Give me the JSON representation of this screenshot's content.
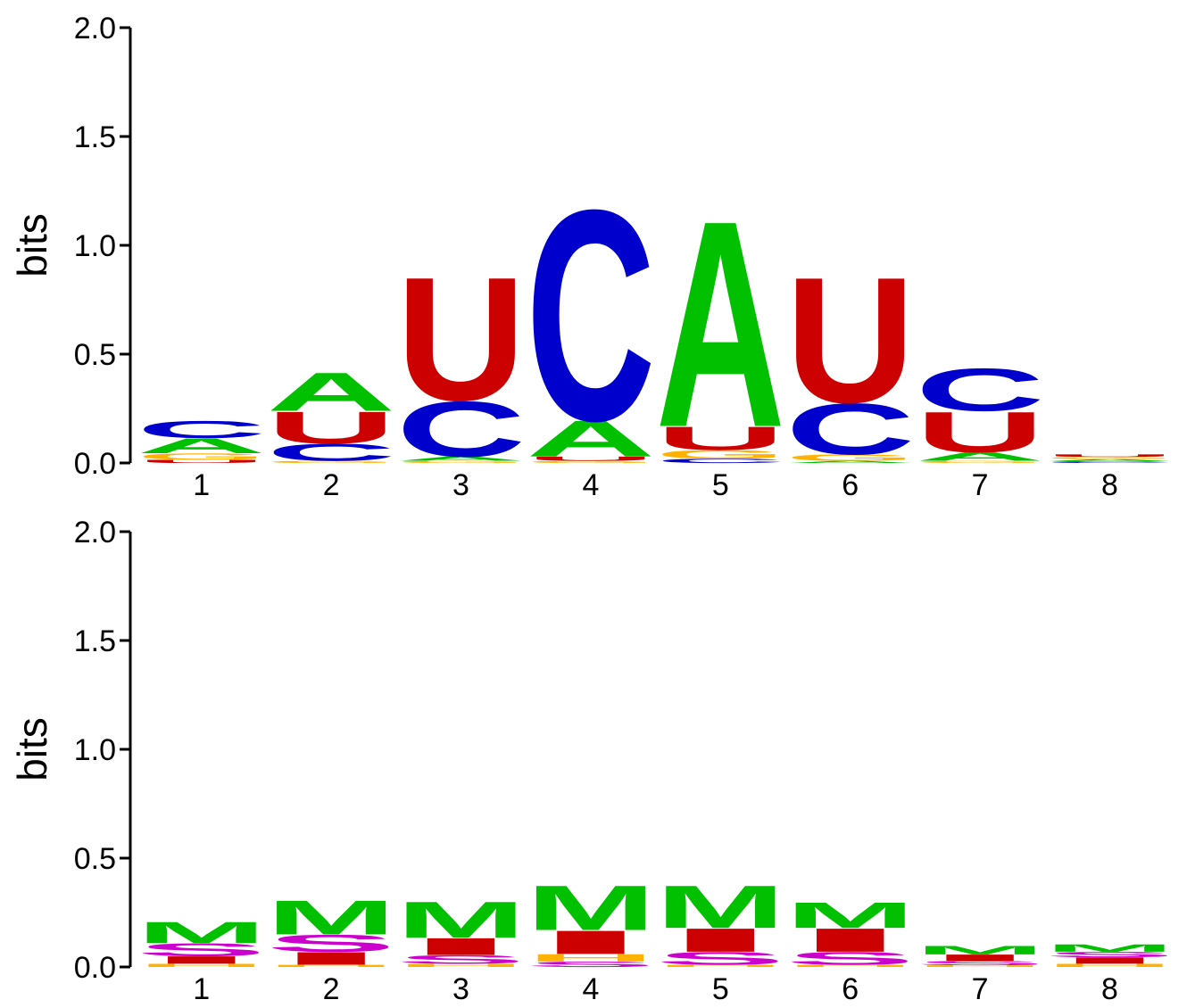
{
  "chart_data": [
    {
      "type": "sequence-logo",
      "ylabel": "bits",
      "ylim": [
        0,
        2
      ],
      "yticks": [
        "0.0",
        "0.5",
        "1.0",
        "1.5",
        "2.0"
      ],
      "ytick_values": [
        0,
        0.5,
        1.0,
        1.5,
        2.0
      ],
      "positions": [
        "1",
        "2",
        "3",
        "4",
        "5",
        "6",
        "7",
        "8"
      ],
      "colors": {
        "A": "#00c000",
        "C": "#0000cc",
        "G": "#ffb300",
        "U": "#cc0000"
      },
      "stacks": [
        [
          {
            "l": "U",
            "h": 0.015
          },
          {
            "l": "G",
            "h": 0.03
          },
          {
            "l": "A",
            "h": 0.07
          },
          {
            "l": "C",
            "h": 0.08
          }
        ],
        [
          {
            "l": "G",
            "h": 0.01
          },
          {
            "l": "C",
            "h": 0.08
          },
          {
            "l": "U",
            "h": 0.15
          },
          {
            "l": "A",
            "h": 0.18
          }
        ],
        [
          {
            "l": "G",
            "h": 0.01
          },
          {
            "l": "A",
            "h": 0.02
          },
          {
            "l": "C",
            "h": 0.26
          },
          {
            "l": "U",
            "h": 0.58
          }
        ],
        [
          {
            "l": "G",
            "h": 0.01
          },
          {
            "l": "U",
            "h": 0.02
          },
          {
            "l": "A",
            "h": 0.17
          },
          {
            "l": "C",
            "h": 0.99
          }
        ],
        [
          {
            "l": "C",
            "h": 0.02
          },
          {
            "l": "G",
            "h": 0.04
          },
          {
            "l": "U",
            "h": 0.11
          },
          {
            "l": "A",
            "h": 0.97
          }
        ],
        [
          {
            "l": "A",
            "h": 0.01
          },
          {
            "l": "G",
            "h": 0.03
          },
          {
            "l": "C",
            "h": 0.24
          },
          {
            "l": "U",
            "h": 0.59
          }
        ],
        [
          {
            "l": "G",
            "h": 0.01
          },
          {
            "l": "A",
            "h": 0.04
          },
          {
            "l": "U",
            "h": 0.19
          },
          {
            "l": "C",
            "h": 0.2
          }
        ],
        [
          {
            "l": "C",
            "h": 0.008
          },
          {
            "l": "A",
            "h": 0.01
          },
          {
            "l": "G",
            "h": 0.01
          },
          {
            "l": "U",
            "h": 0.012
          }
        ]
      ]
    },
    {
      "type": "sequence-logo",
      "ylabel": "bits",
      "ylim": [
        0,
        2
      ],
      "yticks": [
        "0.0",
        "0.5",
        "1.0",
        "1.5",
        "2.0"
      ],
      "ytick_values": [
        0,
        0.5,
        1.0,
        1.5,
        2.0
      ],
      "positions": [
        "1",
        "2",
        "3",
        "4",
        "5",
        "6",
        "7",
        "8"
      ],
      "colors": {
        "M": "#00c000",
        "I": "#cc0000",
        "S": "#cc00cc",
        "H": "#ffb300",
        "E": "#0000cc"
      },
      "stacks": [
        [
          {
            "l": "H",
            "h": 0.015
          },
          {
            "l": "I",
            "h": 0.035
          },
          {
            "l": "S",
            "h": 0.06
          },
          {
            "l": "M",
            "h": 0.1
          }
        ],
        [
          {
            "l": "H",
            "h": 0.01
          },
          {
            "l": "I",
            "h": 0.06
          },
          {
            "l": "S",
            "h": 0.08
          },
          {
            "l": "M",
            "h": 0.16
          }
        ],
        [
          {
            "l": "H",
            "h": 0.015
          },
          {
            "l": "S",
            "h": 0.04
          },
          {
            "l": "I",
            "h": 0.08
          },
          {
            "l": "M",
            "h": 0.17
          }
        ],
        [
          {
            "l": "S",
            "h": 0.025
          },
          {
            "l": "H",
            "h": 0.035
          },
          {
            "l": "I",
            "h": 0.11
          },
          {
            "l": "M",
            "h": 0.21
          }
        ],
        [
          {
            "l": "H",
            "h": 0.01
          },
          {
            "l": "S",
            "h": 0.06
          },
          {
            "l": "I",
            "h": 0.11
          },
          {
            "l": "M",
            "h": 0.2
          }
        ],
        [
          {
            "l": "H",
            "h": 0.01
          },
          {
            "l": "S",
            "h": 0.06
          },
          {
            "l": "I",
            "h": 0.11
          },
          {
            "l": "M",
            "h": 0.12
          }
        ],
        [
          {
            "l": "H",
            "h": 0.008
          },
          {
            "l": "S",
            "h": 0.02
          },
          {
            "l": "I",
            "h": 0.03
          },
          {
            "l": "M",
            "h": 0.04
          }
        ],
        [
          {
            "l": "H",
            "h": 0.015
          },
          {
            "l": "I",
            "h": 0.03
          },
          {
            "l": "S",
            "h": 0.025
          },
          {
            "l": "M",
            "h": 0.035
          }
        ]
      ]
    }
  ]
}
